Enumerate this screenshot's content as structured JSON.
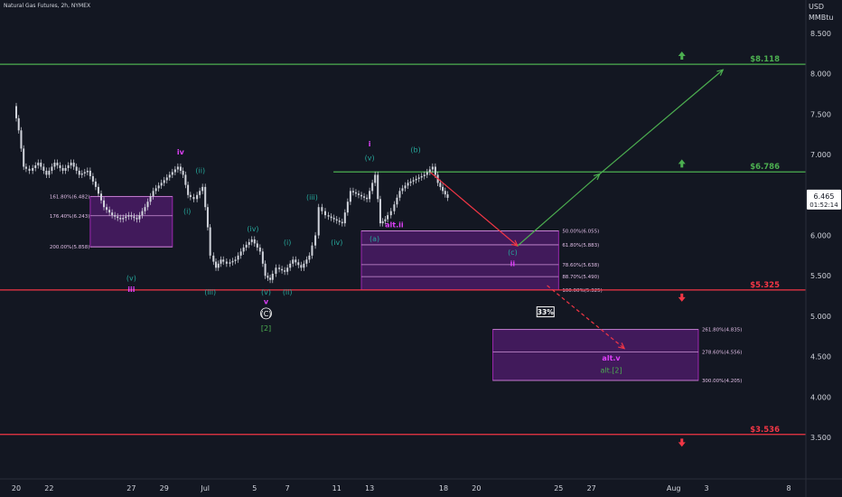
{
  "header": {
    "title": "Natural Gas Futures, 2h, NYMEX"
  },
  "axis": {
    "unit_line1": "USD",
    "unit_line2": "MMBtu"
  },
  "colors": {
    "background": "#131722",
    "green": "#4caf50",
    "red": "#f23645",
    "magenta": "#e040fb",
    "teal": "#26a69a",
    "purple_fill": "#7b1fa2",
    "candle": "#d1d4dc"
  },
  "chart_data": {
    "type": "line",
    "title": "Natural Gas Futures, 2h, NYMEX",
    "ylabel": "USD MMBtu",
    "ylim": [
      3.2,
      8.7
    ],
    "xlim": [
      0,
      54
    ],
    "y_ticks": [
      "8.500",
      "8.000",
      "7.500",
      "7.000",
      "6.500",
      "6.000",
      "5.500",
      "5.000",
      "4.500",
      "4.000",
      "3.500"
    ],
    "x_ticks": [
      {
        "x": 0,
        "label": "20"
      },
      {
        "x": 2,
        "label": "22"
      },
      {
        "x": 7,
        "label": "27"
      },
      {
        "x": 9,
        "label": "29"
      },
      {
        "x": 11.5,
        "label": "Jul"
      },
      {
        "x": 14.5,
        "label": "5"
      },
      {
        "x": 16.5,
        "label": "7"
      },
      {
        "x": 19.5,
        "label": "11"
      },
      {
        "x": 21.5,
        "label": "13"
      },
      {
        "x": 26,
        "label": "18"
      },
      {
        "x": 28,
        "label": "20"
      },
      {
        "x": 33,
        "label": "25"
      },
      {
        "x": 35,
        "label": "27"
      },
      {
        "x": 40,
        "label": "Aug"
      },
      {
        "x": 42,
        "label": "3"
      },
      {
        "x": 47,
        "label": "8"
      }
    ],
    "price_path": [
      [
        0,
        7.6
      ],
      [
        0.3,
        7.3
      ],
      [
        0.6,
        6.85
      ],
      [
        1,
        6.8
      ],
      [
        1.5,
        6.9
      ],
      [
        2,
        6.75
      ],
      [
        2.5,
        6.9
      ],
      [
        3,
        6.8
      ],
      [
        3.5,
        6.9
      ],
      [
        4,
        6.75
      ],
      [
        4.5,
        6.8
      ],
      [
        5,
        6.6
      ],
      [
        5.5,
        6.35
      ],
      [
        6,
        6.25
      ],
      [
        6.5,
        6.2
      ],
      [
        7,
        6.25
      ],
      [
        7.5,
        6.2
      ],
      [
        8,
        6.35
      ],
      [
        8.5,
        6.55
      ],
      [
        9,
        6.65
      ],
      [
        9.5,
        6.75
      ],
      [
        10,
        6.85
      ],
      [
        10.3,
        6.75
      ],
      [
        10.6,
        6.5
      ],
      [
        11,
        6.45
      ],
      [
        11.5,
        6.6
      ],
      [
        11.8,
        6.1
      ],
      [
        12,
        5.75
      ],
      [
        12.3,
        5.6
      ],
      [
        12.6,
        5.7
      ],
      [
        13,
        5.65
      ],
      [
        13.5,
        5.7
      ],
      [
        14,
        5.85
      ],
      [
        14.5,
        5.95
      ],
      [
        15,
        5.8
      ],
      [
        15.3,
        5.5
      ],
      [
        15.6,
        5.45
      ],
      [
        16,
        5.6
      ],
      [
        16.5,
        5.55
      ],
      [
        17,
        5.7
      ],
      [
        17.5,
        5.6
      ],
      [
        18,
        5.75
      ],
      [
        18.4,
        6.0
      ],
      [
        18.6,
        6.35
      ],
      [
        19,
        6.25
      ],
      [
        19.5,
        6.2
      ],
      [
        20,
        6.15
      ],
      [
        20.5,
        6.55
      ],
      [
        21,
        6.5
      ],
      [
        21.5,
        6.45
      ],
      [
        22,
        6.75
      ],
      [
        22.3,
        6.15
      ],
      [
        22.6,
        6.2
      ],
      [
        23,
        6.3
      ],
      [
        23.5,
        6.55
      ],
      [
        24,
        6.65
      ],
      [
        24.5,
        6.7
      ],
      [
        25,
        6.75
      ],
      [
        25.5,
        6.85
      ],
      [
        25.8,
        6.65
      ],
      [
        26.1,
        6.55
      ],
      [
        26.4,
        6.465
      ]
    ],
    "levels": [
      {
        "value": 8.118,
        "label": "$8.118",
        "color": "green"
      },
      {
        "value": 6.786,
        "label": "$6.786",
        "color": "green"
      },
      {
        "value": 5.325,
        "label": "$5.325",
        "color": "red"
      },
      {
        "value": 3.536,
        "label": "$3.536",
        "color": "red"
      }
    ],
    "current_price": {
      "value": 6.465,
      "label": "6.465",
      "countdown": "01:52:14"
    },
    "fib_zones": [
      {
        "name": "zone-left",
        "x": [
          4.5,
          9.5
        ],
        "ytop": 6.482,
        "ybottom": 5.858,
        "lines": [
          {
            "value": 6.482,
            "label": "161.80%(6.482)"
          },
          {
            "value": 6.243,
            "label": "176.40%(6.243)"
          },
          {
            "value": 5.858,
            "label": "200.00%(5.858)"
          }
        ]
      },
      {
        "name": "zone-mid",
        "x": [
          21,
          33
        ],
        "ytop": 6.055,
        "ybottom": 5.325,
        "lines": [
          {
            "value": 6.055,
            "label": "50.00%(6.055)"
          },
          {
            "value": 5.883,
            "label": "61.80%(5.883)"
          },
          {
            "value": 5.638,
            "label": "78.60%(5.638)"
          },
          {
            "value": 5.49,
            "label": "88.70%(5.490)"
          },
          {
            "value": 5.325,
            "label": "100.00%(5.325)"
          }
        ]
      },
      {
        "name": "zone-low",
        "x": [
          29,
          41.5
        ],
        "ytop": 4.835,
        "ybottom": 4.205,
        "lines": [
          {
            "value": 4.835,
            "label": "261.80%(4.835)"
          },
          {
            "value": 4.556,
            "label": "278.60%(4.556)"
          },
          {
            "value": 4.205,
            "label": "300.00%(4.205)"
          }
        ]
      }
    ],
    "projections": [
      {
        "from": [
          25.2,
          6.78
        ],
        "to": [
          30.5,
          5.87
        ],
        "color": "red",
        "dashed": false
      },
      {
        "from": [
          30.5,
          5.87
        ],
        "to": [
          35.5,
          6.76
        ],
        "color": "green",
        "dashed": false
      },
      {
        "from": [
          35.5,
          6.76
        ],
        "to": [
          43,
          8.05
        ],
        "color": "green",
        "dashed": false
      },
      {
        "from": [
          32.3,
          5.38
        ],
        "to": [
          37,
          4.6
        ],
        "color": "red",
        "dashed": true
      }
    ],
    "annotations": [
      {
        "x": 10,
        "y": 7.0,
        "text": "iv",
        "color": "magenta",
        "bold": true
      },
      {
        "x": 7,
        "y": 5.3,
        "text": "iii",
        "color": "magenta",
        "bold": true
      },
      {
        "x": 7,
        "y": 5.44,
        "text": "(v)",
        "color": "teal"
      },
      {
        "x": 11.2,
        "y": 6.77,
        "text": "(ii)",
        "color": "teal"
      },
      {
        "x": 10.4,
        "y": 6.27,
        "text": "(i)",
        "color": "teal"
      },
      {
        "x": 11.8,
        "y": 5.27,
        "text": "(iii)",
        "color": "teal"
      },
      {
        "x": 14.4,
        "y": 6.05,
        "text": "(iv)",
        "color": "teal"
      },
      {
        "x": 15.2,
        "y": 5.27,
        "text": "(v)",
        "color": "teal"
      },
      {
        "x": 15.2,
        "y": 5.15,
        "text": "v",
        "color": "magenta",
        "bold": true
      },
      {
        "x": 15.2,
        "y": 5.0,
        "text": "(C)",
        "color": "white",
        "circle": true
      },
      {
        "x": 15.2,
        "y": 4.82,
        "text": "[2]",
        "color": "green"
      },
      {
        "x": 16.5,
        "y": 5.27,
        "text": "(ii)",
        "color": "teal"
      },
      {
        "x": 16.5,
        "y": 5.88,
        "text": "(i)",
        "color": "teal"
      },
      {
        "x": 18,
        "y": 6.44,
        "text": "(iii)",
        "color": "teal"
      },
      {
        "x": 19.5,
        "y": 5.88,
        "text": "(iv)",
        "color": "teal"
      },
      {
        "x": 21.5,
        "y": 7.1,
        "text": "i",
        "color": "magenta",
        "bold": true
      },
      {
        "x": 21.5,
        "y": 6.93,
        "text": "(v)",
        "color": "teal"
      },
      {
        "x": 21.8,
        "y": 5.93,
        "text": "(a)",
        "color": "teal"
      },
      {
        "x": 23,
        "y": 6.1,
        "text": "alt.ii",
        "color": "magenta",
        "bold": true
      },
      {
        "x": 24.3,
        "y": 7.03,
        "text": "(b)",
        "color": "teal"
      },
      {
        "x": 30.2,
        "y": 5.76,
        "text": "(c)",
        "color": "teal"
      },
      {
        "x": 30.2,
        "y": 5.62,
        "text": "ii",
        "color": "magenta",
        "bold": true
      },
      {
        "x": 36.2,
        "y": 4.45,
        "text": "alt.v",
        "color": "magenta",
        "bold": true
      },
      {
        "x": 36.2,
        "y": 4.3,
        "text": "alt.[2]",
        "color": "green"
      }
    ],
    "probability_badge": {
      "x": 32.2,
      "y": 5.02,
      "text": "33%"
    },
    "arrows": [
      {
        "x": 40.5,
        "y": 8.22,
        "dir": "up",
        "color": "green"
      },
      {
        "x": 40.5,
        "y": 6.885,
        "dir": "up",
        "color": "green"
      },
      {
        "x": 40.5,
        "y": 5.235,
        "dir": "down",
        "color": "red"
      },
      {
        "x": 40.5,
        "y": 3.44,
        "dir": "down",
        "color": "red"
      }
    ]
  }
}
